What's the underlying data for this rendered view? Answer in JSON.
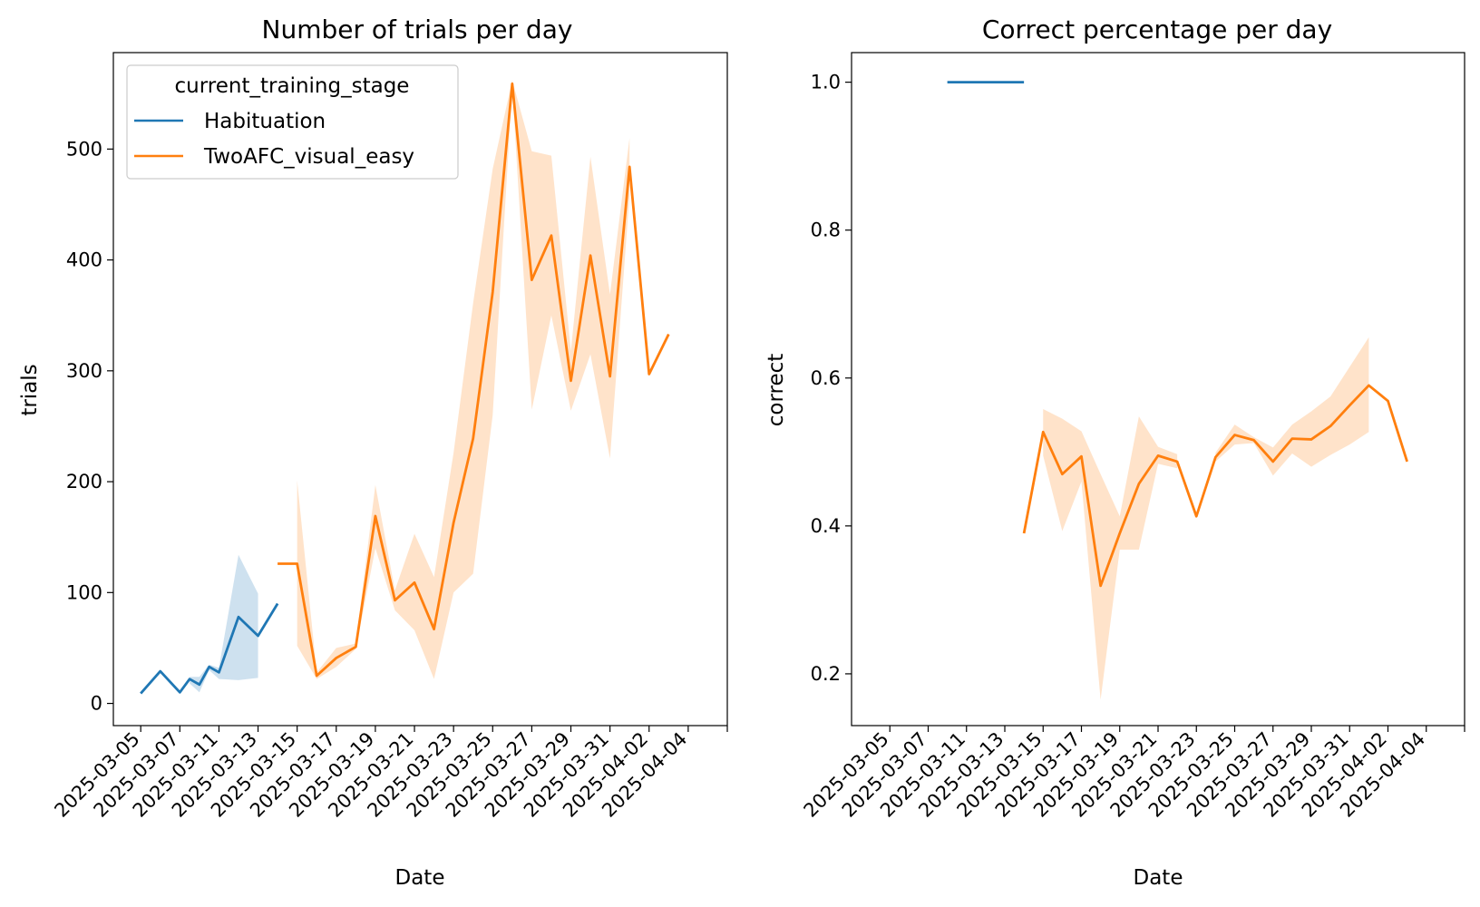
{
  "charts": [
    {
      "title": "Number of trials per day",
      "xlabel": "Date",
      "ylabel": "trials",
      "yticks": [
        0,
        100,
        200,
        300,
        400,
        500
      ],
      "ylim": [
        -20,
        587
      ],
      "legend": {
        "title": "current_training_stage",
        "placement": "upper-left"
      }
    },
    {
      "title": "Correct percentage per day",
      "xlabel": "Date",
      "ylabel": "correct",
      "yticks": [
        0.2,
        0.4,
        0.6,
        0.8,
        1.0
      ],
      "ytick_labels": [
        "0.2",
        "0.4",
        "0.6",
        "0.8",
        "1.0"
      ],
      "ylim": [
        0.13,
        1.04
      ]
    }
  ],
  "xticks": [
    "2025-03-05",
    "2025-03-07",
    "2025-03-11",
    "2025-03-13",
    "2025-03-15",
    "2025-03-17",
    "2025-03-19",
    "2025-03-21",
    "2025-03-23",
    "2025-03-25",
    "2025-03-27",
    "2025-03-29",
    "2025-03-31",
    "2025-04-02",
    "2025-04-04"
  ],
  "colors": {
    "Habituation": "#1f77b4",
    "TwoAFC_visual_easy": "#ff7f0e"
  },
  "chart_data": [
    {
      "type": "line",
      "title": "Number of trials per day",
      "xlabel": "Date",
      "ylabel": "trials",
      "ylim": [
        -20,
        587
      ],
      "x_type": "date",
      "series": [
        {
          "name": "Habituation",
          "color": "#1f77b4",
          "points": [
            {
              "x": "2025-03-05",
              "y": 9
            },
            {
              "x": "2025-03-06",
              "y": 29
            },
            {
              "x": "2025-03-07",
              "y": 10
            },
            {
              "x": "2025-03-08",
              "y": 22,
              "lo": 18,
              "hi": 24
            },
            {
              "x": "2025-03-09",
              "y": 17,
              "lo": 10,
              "hi": 24
            },
            {
              "x": "2025-03-10",
              "y": 33,
              "lo": 30,
              "hi": 35
            },
            {
              "x": "2025-03-11",
              "y": 28,
              "lo": 22,
              "hi": 32
            },
            {
              "x": "2025-03-12",
              "y": 78,
              "lo": 21,
              "hi": 134
            },
            {
              "x": "2025-03-13",
              "y": 61,
              "lo": 23,
              "hi": 99
            },
            {
              "x": "2025-03-14",
              "y": 90
            }
          ]
        },
        {
          "name": "TwoAFC_visual_easy",
          "color": "#ff7f0e",
          "points": [
            {
              "x": "2025-03-14",
              "y": 126
            },
            {
              "x": "2025-03-15",
              "y": 126,
              "lo": 52,
              "hi": 201
            },
            {
              "x": "2025-03-16",
              "y": 25,
              "lo": 22,
              "hi": 28
            },
            {
              "x": "2025-03-17",
              "y": 41,
              "lo": 33,
              "hi": 50
            },
            {
              "x": "2025-03-18",
              "y": 51,
              "lo": 49,
              "hi": 54
            },
            {
              "x": "2025-03-19",
              "y": 169,
              "lo": 140,
              "hi": 197
            },
            {
              "x": "2025-03-20",
              "y": 93,
              "lo": 84,
              "hi": 102
            },
            {
              "x": "2025-03-21",
              "y": 109,
              "lo": 66,
              "hi": 153
            },
            {
              "x": "2025-03-22",
              "y": 67,
              "lo": 22,
              "hi": 114
            },
            {
              "x": "2025-03-23",
              "y": 163,
              "lo": 100,
              "hi": 226
            },
            {
              "x": "2025-03-24",
              "y": 239,
              "lo": 117,
              "hi": 361
            },
            {
              "x": "2025-03-25",
              "y": 371,
              "lo": 260,
              "hi": 482
            },
            {
              "x": "2025-03-26",
              "y": 559,
              "lo": 556,
              "hi": 562
            },
            {
              "x": "2025-03-27",
              "y": 382,
              "lo": 265,
              "hi": 498
            },
            {
              "x": "2025-03-28",
              "y": 422,
              "lo": 350,
              "hi": 494
            },
            {
              "x": "2025-03-29",
              "y": 291,
              "lo": 264,
              "hi": 318
            },
            {
              "x": "2025-03-30",
              "y": 404,
              "lo": 315,
              "hi": 493
            },
            {
              "x": "2025-03-31",
              "y": 295,
              "lo": 221,
              "hi": 369
            },
            {
              "x": "2025-04-01",
              "y": 484,
              "lo": 458,
              "hi": 510
            },
            {
              "x": "2025-04-02",
              "y": 297
            },
            {
              "x": "2025-04-03",
              "y": 333
            }
          ]
        }
      ]
    },
    {
      "type": "line",
      "title": "Correct percentage per day",
      "xlabel": "Date",
      "ylabel": "correct",
      "ylim": [
        0.13,
        1.04
      ],
      "x_type": "date",
      "series": [
        {
          "name": "Habituation",
          "color": "#1f77b4",
          "points": [
            {
              "x": "2025-03-09",
              "y": 1.0
            },
            {
              "x": "2025-03-14",
              "y": 1.0
            }
          ]
        },
        {
          "name": "TwoAFC_visual_easy",
          "color": "#ff7f0e",
          "points": [
            {
              "x": "2025-03-14",
              "y": 0.39
            },
            {
              "x": "2025-03-15",
              "y": 0.527,
              "lo": 0.495,
              "hi": 0.558
            },
            {
              "x": "2025-03-16",
              "y": 0.47,
              "lo": 0.393,
              "hi": 0.545
            },
            {
              "x": "2025-03-17",
              "y": 0.494,
              "lo": 0.46,
              "hi": 0.528
            },
            {
              "x": "2025-03-18",
              "y": 0.319,
              "lo": 0.165,
              "hi": 0.47
            },
            {
              "x": "2025-03-19",
              "y": 0.39,
              "lo": 0.368,
              "hi": 0.413
            },
            {
              "x": "2025-03-20",
              "y": 0.457,
              "lo": 0.368,
              "hi": 0.548
            },
            {
              "x": "2025-03-21",
              "y": 0.495,
              "lo": 0.484,
              "hi": 0.507
            },
            {
              "x": "2025-03-22",
              "y": 0.487,
              "lo": 0.478,
              "hi": 0.497
            },
            {
              "x": "2025-03-23",
              "y": 0.413
            },
            {
              "x": "2025-03-24",
              "y": 0.493,
              "lo": 0.487,
              "hi": 0.499
            },
            {
              "x": "2025-03-25",
              "y": 0.523,
              "lo": 0.51,
              "hi": 0.537
            },
            {
              "x": "2025-03-26",
              "y": 0.516,
              "lo": 0.512,
              "hi": 0.52
            },
            {
              "x": "2025-03-27",
              "y": 0.487,
              "lo": 0.468,
              "hi": 0.506
            },
            {
              "x": "2025-03-28",
              "y": 0.518,
              "lo": 0.498,
              "hi": 0.537
            },
            {
              "x": "2025-03-29",
              "y": 0.517,
              "lo": 0.48,
              "hi": 0.555
            },
            {
              "x": "2025-03-30",
              "y": 0.535,
              "lo": 0.496,
              "hi": 0.575
            },
            {
              "x": "2025-03-31",
              "y": 0.563,
              "lo": 0.51,
              "hi": 0.615
            },
            {
              "x": "2025-04-01",
              "y": 0.59,
              "lo": 0.527,
              "hi": 0.655
            },
            {
              "x": "2025-04-02",
              "y": 0.569
            },
            {
              "x": "2025-04-03",
              "y": 0.487
            }
          ]
        }
      ]
    }
  ]
}
